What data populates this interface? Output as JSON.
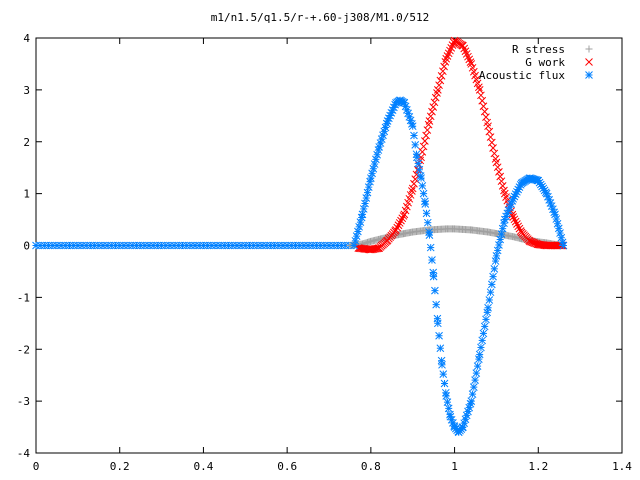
{
  "chart_data": {
    "type": "scatter",
    "title": "m1/n1.5/q1.5/r-+.60-j308/M1.0/512",
    "xlabel": "",
    "ylabel": "",
    "xlim": [
      0,
      1.4
    ],
    "ylim": [
      -4,
      4
    ],
    "xticks": [
      "0",
      "0.2",
      "0.4",
      "0.6",
      "0.8",
      "1",
      "1.2",
      "1.4"
    ],
    "yticks": [
      "4",
      "3",
      "2",
      "1",
      "0",
      "-1",
      "-2",
      "-3",
      "-4"
    ],
    "xtick_values": [
      0,
      0.2,
      0.4,
      0.6,
      0.8,
      1.0,
      1.2,
      1.4
    ],
    "ytick_values": [
      4,
      3,
      2,
      1,
      0,
      -1,
      -2,
      -3,
      -4
    ],
    "grid": false,
    "legend_position": "top-right",
    "series": [
      {
        "name": "R stress",
        "marker": "plus",
        "color": "#a0a0a0",
        "x": [
          0.75,
          0.78,
          0.8,
          0.82,
          0.84,
          0.86,
          0.88,
          0.9,
          0.92,
          0.94,
          0.96,
          0.98,
          1.0,
          1.02,
          1.04,
          1.06,
          1.08,
          1.1,
          1.12,
          1.14,
          1.16,
          1.18,
          1.2,
          1.22,
          1.24,
          1.26
        ],
        "y": [
          0.0,
          0.03,
          0.08,
          0.12,
          0.16,
          0.2,
          0.23,
          0.26,
          0.28,
          0.3,
          0.31,
          0.32,
          0.32,
          0.31,
          0.3,
          0.28,
          0.26,
          0.23,
          0.2,
          0.17,
          0.13,
          0.1,
          0.07,
          0.05,
          0.02,
          0.0
        ]
      },
      {
        "name": "G work",
        "marker": "cross",
        "color": "#ff0000",
        "x": [
          0.77,
          0.8,
          0.82,
          0.84,
          0.86,
          0.88,
          0.9,
          0.92,
          0.94,
          0.96,
          0.98,
          1.0,
          1.02,
          1.04,
          1.06,
          1.08,
          1.1,
          1.12,
          1.14,
          1.16,
          1.18,
          1.2,
          1.22,
          1.24,
          1.26
        ],
        "y": [
          -0.05,
          -0.08,
          -0.05,
          0.1,
          0.3,
          0.6,
          1.1,
          1.7,
          2.4,
          3.0,
          3.6,
          3.95,
          3.85,
          3.5,
          3.0,
          2.3,
          1.6,
          1.0,
          0.55,
          0.25,
          0.08,
          0.02,
          0.0,
          0.0,
          0.0
        ]
      },
      {
        "name": "Acoustic flux",
        "marker": "star",
        "color": "#0080ff",
        "x": [
          0.76,
          0.78,
          0.8,
          0.82,
          0.84,
          0.86,
          0.87,
          0.88,
          0.9,
          0.91,
          0.92,
          0.93,
          0.94,
          0.95,
          0.96,
          0.97,
          0.98,
          0.99,
          1.0,
          1.01,
          1.02,
          1.04,
          1.06,
          1.08,
          1.1,
          1.12,
          1.14,
          1.16,
          1.18,
          1.2,
          1.22,
          1.24,
          1.26
        ],
        "y": [
          0.0,
          0.6,
          1.3,
          1.9,
          2.4,
          2.75,
          2.8,
          2.75,
          2.3,
          1.7,
          1.3,
          0.8,
          0.2,
          -0.6,
          -1.5,
          -2.3,
          -2.9,
          -3.3,
          -3.5,
          -3.6,
          -3.5,
          -3.0,
          -2.1,
          -1.2,
          -0.2,
          0.5,
          0.9,
          1.2,
          1.3,
          1.25,
          1.0,
          0.6,
          0.0
        ]
      }
    ]
  }
}
